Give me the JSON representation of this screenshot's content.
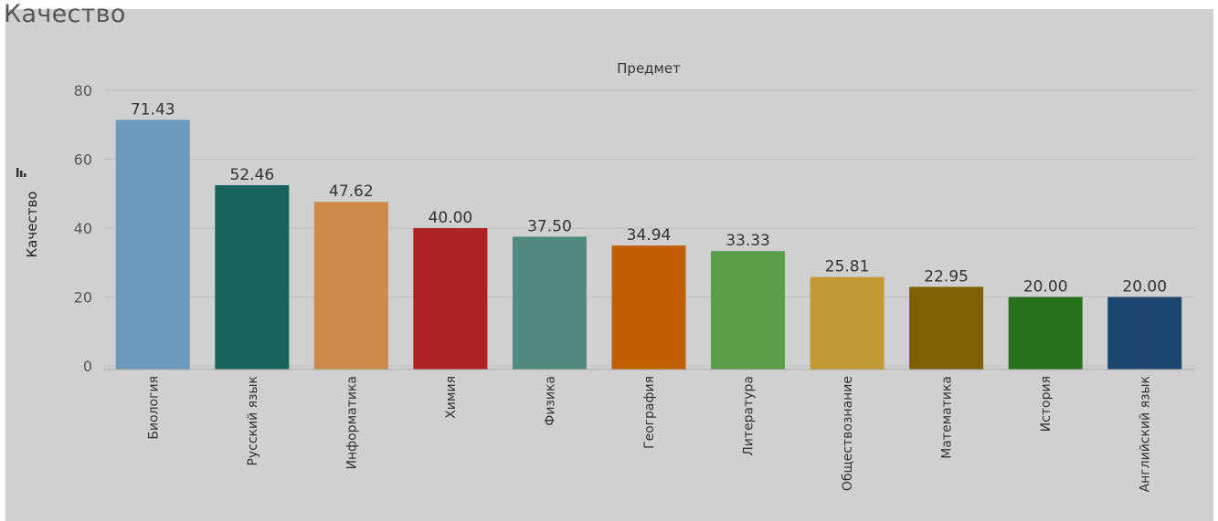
{
  "title": "Качество",
  "sort_icon": "sort-descending-icon",
  "chart_data": {
    "type": "bar",
    "column_header": "Предмет",
    "ylabel": "Качество",
    "xlabel": "",
    "ylim": [
      0,
      80
    ],
    "yticks": [
      0,
      20,
      40,
      60,
      80
    ],
    "grid": true,
    "categories": [
      "Биология",
      "Русский язык",
      "Информатика",
      "Химия",
      "Физика",
      "География",
      "Литература",
      "Обществознание",
      "Математика",
      "История",
      "Английский язык"
    ],
    "values": [
      71.43,
      52.46,
      47.62,
      40.0,
      37.5,
      34.94,
      33.33,
      25.81,
      22.95,
      20.0,
      20.0
    ],
    "value_labels": [
      "71.43",
      "52.46",
      "47.62",
      "40.00",
      "37.50",
      "34.94",
      "33.33",
      "25.81",
      "22.95",
      "20.00",
      "20.00"
    ],
    "colors": [
      "#6b9ac0",
      "#18645c",
      "#ce8a4a",
      "#ae2226",
      "#50897f",
      "#c25f00",
      "#5b9e4a",
      "#c19a34",
      "#7d6002",
      "#286f1e",
      "#1c4570"
    ]
  }
}
